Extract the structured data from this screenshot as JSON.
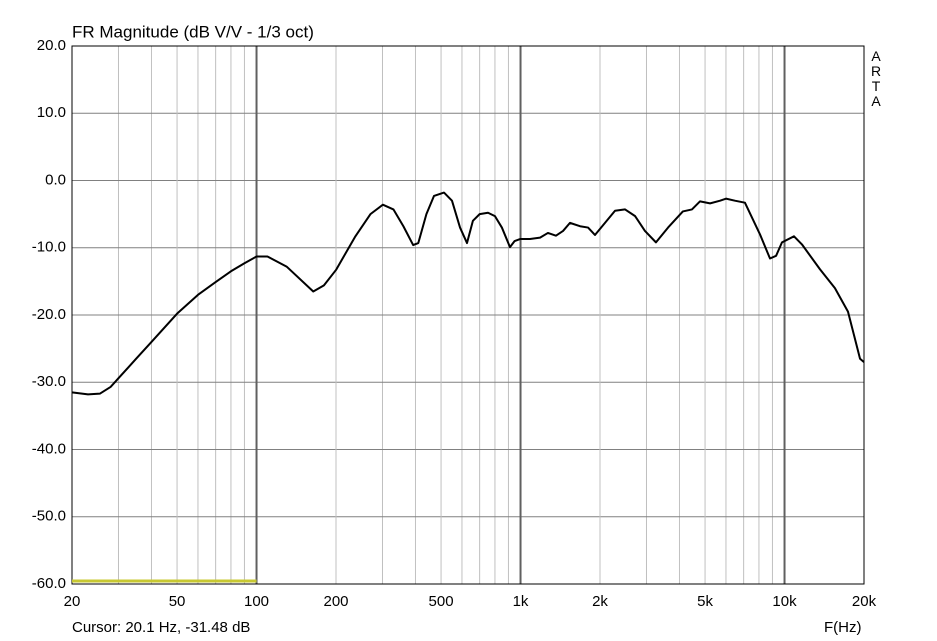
{
  "chart_data": {
    "type": "line",
    "title": "FR Magnitude (dB V/V - 1/3 oct)",
    "side_label": "ARTA",
    "cursor_text": "Cursor: 20.1 Hz, -31.48 dB",
    "x_label": "F(Hz)",
    "x_log": true,
    "grid": true,
    "x": [
      20,
      23,
      25.5,
      28,
      30,
      35,
      40,
      50,
      60,
      70,
      80,
      90,
      100,
      110,
      130,
      164,
      180,
      200,
      236,
      270,
      301,
      330,
      360,
      392,
      410,
      440,
      470,
      513,
      550,
      590,
      627,
      660,
      700,
      753,
      800,
      850,
      912,
      950,
      996,
      1086,
      1186,
      1270,
      1362,
      1449,
      1539,
      1680,
      1802,
      1914,
      2089,
      2280,
      2489,
      2717,
      2960,
      3258,
      3620,
      4120,
      4460,
      4786,
      5224,
      5700,
      6000,
      6486,
      7080,
      8070,
      8810,
      9290,
      9780,
      10860,
      11640,
      13620,
      15520,
      17390,
      18330,
      19320,
      20000
    ],
    "series": [
      {
        "name": "FR Magnitude",
        "color": "#000000",
        "values": [
          -31.5,
          -31.8,
          -31.7,
          -30.7,
          -29.4,
          -26.5,
          -24,
          -19.8,
          -17,
          -15.1,
          -13.5,
          -12.3,
          -11.3,
          -11.3,
          -12.8,
          -16.5,
          -15.6,
          -13.3,
          -8.4,
          -5,
          -3.6,
          -4.3,
          -6.8,
          -9.6,
          -9.3,
          -5,
          -2.3,
          -1.8,
          -3,
          -7,
          -9.3,
          -6,
          -5,
          -4.8,
          -5.3,
          -7,
          -9.9,
          -9,
          -8.7,
          -8.7,
          -8.5,
          -7.8,
          -8.2,
          -7.5,
          -6.3,
          -6.8,
          -7,
          -8.1,
          -6.3,
          -4.5,
          -4.3,
          -5.3,
          -7.5,
          -9.2,
          -7,
          -4.6,
          -4.3,
          -3.1,
          -3.4,
          -3,
          -2.7,
          -3,
          -3.3,
          -8,
          -11.6,
          -11.2,
          -9.2,
          -8.3,
          -9.5,
          -13.2,
          -16,
          -19.5,
          -23,
          -26.5,
          -27
        ]
      }
    ],
    "xlim": [
      20,
      20000
    ],
    "ylim": [
      -60,
      20
    ],
    "xticks": [
      20,
      50,
      100,
      200,
      500,
      {
        "value": 1000,
        "label": "1k"
      },
      {
        "value": 2000,
        "label": "2k"
      },
      {
        "value": 5000,
        "label": "5k"
      },
      {
        "value": 10000,
        "label": "10k"
      },
      {
        "value": 20000,
        "label": "20k"
      }
    ],
    "xminorticks": [
      30,
      40,
      60,
      70,
      80,
      90,
      300,
      400,
      600,
      700,
      800,
      900,
      3000,
      4000,
      6000,
      7000,
      8000,
      9000
    ],
    "yticks": [
      {
        "value": -60,
        "label": "-60.0"
      },
      {
        "value": -50,
        "label": "-50.0"
      },
      {
        "value": -40,
        "label": "-40.0"
      },
      {
        "value": -30,
        "label": "-30.0"
      },
      {
        "value": -20,
        "label": "-20.0"
      },
      {
        "value": -10,
        "label": "-10.0"
      },
      {
        "value": 0,
        "label": "0.0"
      },
      {
        "value": 10,
        "label": "10.0"
      },
      {
        "value": 20,
        "label": "20.0"
      }
    ],
    "marker": {
      "xrange": [
        20,
        100
      ],
      "color": "#c8c832"
    }
  }
}
